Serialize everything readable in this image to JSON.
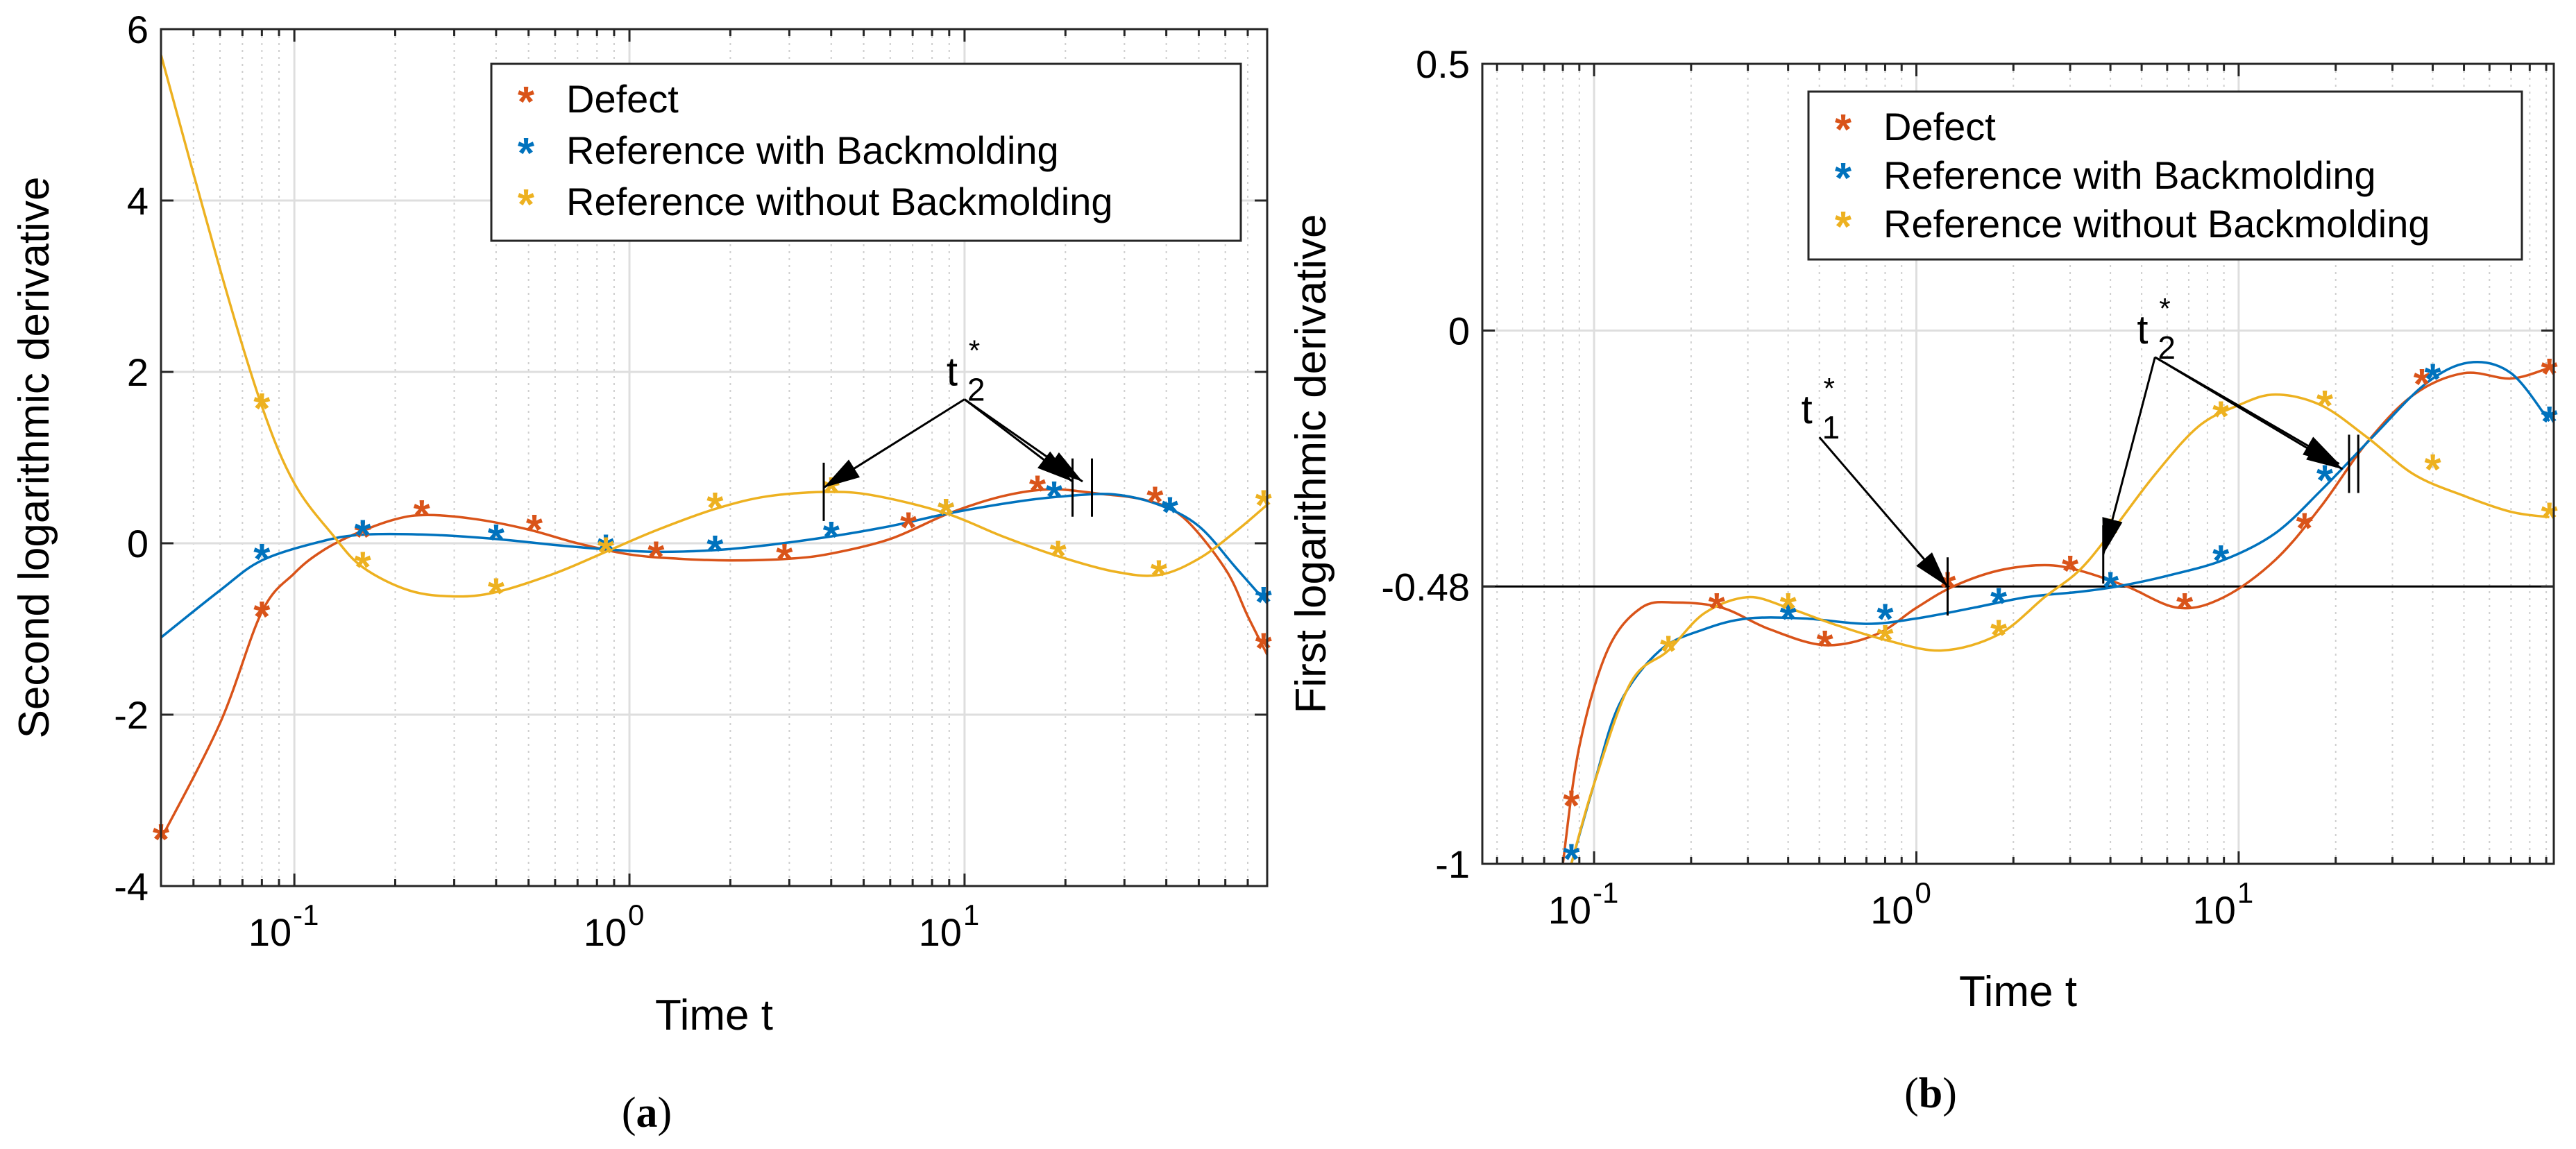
{
  "colors": {
    "defect": "#D95319",
    "with_backmolding": "#0072BD",
    "without_backmolding": "#EDB120",
    "grid": "#dedede",
    "axis": "#262626"
  },
  "chart_data": [
    {
      "id": "a",
      "type": "line",
      "caption": "(a)",
      "xscale": "log",
      "xlim": [
        0.04,
        80
      ],
      "ylim": [
        -4,
        6
      ],
      "xlabel": "Time t",
      "ylabel": "Second logarithmic derivative",
      "xticks": [
        0.1,
        1,
        10
      ],
      "xtick_bases": [
        "10",
        "10",
        "10"
      ],
      "xtick_exponents": [
        "-1",
        "0",
        "1"
      ],
      "yticks": [
        -4,
        -2,
        0,
        2,
        4,
        6
      ],
      "ytick_labels": [
        "-4",
        "-2",
        "0",
        "2",
        "4",
        "6"
      ],
      "grid": true,
      "legend_position": "top-right",
      "legend": [
        "Defect",
        "Reference with Backmolding",
        "Reference without Backmolding"
      ],
      "series": [
        {
          "name": "Defect",
          "color_key": "defect",
          "line": [
            [
              0.04,
              -3.45
            ],
            [
              0.06,
              -2.1
            ],
            [
              0.08,
              -0.8
            ],
            [
              0.1,
              -0.35
            ],
            [
              0.12,
              -0.1
            ],
            [
              0.15,
              0.1
            ],
            [
              0.2,
              0.28
            ],
            [
              0.25,
              0.33
            ],
            [
              0.35,
              0.28
            ],
            [
              0.5,
              0.16
            ],
            [
              0.7,
              0.0
            ],
            [
              1.0,
              -0.13
            ],
            [
              1.4,
              -0.18
            ],
            [
              2.0,
              -0.2
            ],
            [
              3.0,
              -0.18
            ],
            [
              4.0,
              -0.12
            ],
            [
              6.0,
              0.05
            ],
            [
              9.0,
              0.35
            ],
            [
              13.0,
              0.55
            ],
            [
              18.0,
              0.63
            ],
            [
              25.0,
              0.58
            ],
            [
              35.0,
              0.5
            ],
            [
              45.0,
              0.3
            ],
            [
              60.0,
              -0.3
            ],
            [
              70.0,
              -0.85
            ],
            [
              80.0,
              -1.3
            ]
          ],
          "markers": [
            [
              0.04,
              -3.45
            ],
            [
              0.08,
              -0.85
            ],
            [
              0.16,
              0.08
            ],
            [
              0.24,
              0.33
            ],
            [
              0.52,
              0.16
            ],
            [
              1.2,
              -0.15
            ],
            [
              2.9,
              -0.18
            ],
            [
              6.8,
              0.19
            ],
            [
              16.5,
              0.62
            ],
            [
              37.0,
              0.49
            ],
            [
              78.0,
              -1.22
            ]
          ]
        },
        {
          "name": "Reference with Backmolding",
          "color_key": "with_backmolding",
          "line": [
            [
              0.04,
              -1.1
            ],
            [
              0.06,
              -0.55
            ],
            [
              0.08,
              -0.2
            ],
            [
              0.12,
              0.02
            ],
            [
              0.16,
              0.1
            ],
            [
              0.25,
              0.1
            ],
            [
              0.4,
              0.05
            ],
            [
              0.6,
              -0.02
            ],
            [
              0.85,
              -0.07
            ],
            [
              1.2,
              -0.1
            ],
            [
              1.8,
              -0.08
            ],
            [
              2.6,
              -0.02
            ],
            [
              4.0,
              0.08
            ],
            [
              6.0,
              0.2
            ],
            [
              9.0,
              0.35
            ],
            [
              14.0,
              0.48
            ],
            [
              20.0,
              0.55
            ],
            [
              28.0,
              0.57
            ],
            [
              38.0,
              0.45
            ],
            [
              50.0,
              0.2
            ],
            [
              65.0,
              -0.3
            ],
            [
              80.0,
              -0.7
            ]
          ],
          "markers": [
            [
              0.08,
              -0.18
            ],
            [
              0.16,
              0.1
            ],
            [
              0.4,
              0.05
            ],
            [
              0.85,
              -0.07
            ],
            [
              1.8,
              -0.08
            ],
            [
              4.0,
              0.08
            ],
            [
              8.8,
              0.35
            ],
            [
              18.5,
              0.55
            ],
            [
              41.0,
              0.37
            ],
            [
              78.0,
              -0.68
            ]
          ]
        },
        {
          "name": "Reference without Backmolding",
          "color_key": "without_backmolding",
          "line": [
            [
              0.04,
              5.7
            ],
            [
              0.06,
              3.2
            ],
            [
              0.08,
              1.6
            ],
            [
              0.1,
              0.7
            ],
            [
              0.13,
              0.1
            ],
            [
              0.16,
              -0.28
            ],
            [
              0.22,
              -0.55
            ],
            [
              0.3,
              -0.62
            ],
            [
              0.4,
              -0.57
            ],
            [
              0.6,
              -0.35
            ],
            [
              0.85,
              -0.1
            ],
            [
              1.2,
              0.15
            ],
            [
              1.8,
              0.4
            ],
            [
              2.6,
              0.55
            ],
            [
              4.0,
              0.6
            ],
            [
              5.5,
              0.55
            ],
            [
              8.8,
              0.35
            ],
            [
              13.0,
              0.08
            ],
            [
              19.0,
              -0.15
            ],
            [
              28.0,
              -0.33
            ],
            [
              38.0,
              -0.37
            ],
            [
              50.0,
              -0.18
            ],
            [
              65.0,
              0.15
            ],
            [
              80.0,
              0.45
            ]
          ],
          "markers": [
            [
              0.08,
              1.58
            ],
            [
              0.16,
              -0.27
            ],
            [
              0.4,
              -0.58
            ],
            [
              0.85,
              -0.1
            ],
            [
              1.8,
              0.42
            ],
            [
              4.0,
              0.6
            ],
            [
              8.8,
              0.35
            ],
            [
              19.0,
              -0.14
            ],
            [
              38.0,
              -0.37
            ],
            [
              78.0,
              0.45
            ]
          ]
        }
      ],
      "annotations": [
        {
          "label_base": "t",
          "label_sub": "2",
          "label_sup": "*",
          "anchor": [
            10,
            1.68
          ],
          "targets": [
            [
              3.8,
              0.65
            ],
            [
              21.0,
              0.72
            ],
            [
              22.5,
              0.72
            ]
          ],
          "markers": [
            [
              3.8,
              0.6
            ],
            [
              21.0,
              0.65
            ],
            [
              24.0,
              0.65
            ]
          ]
        }
      ]
    },
    {
      "id": "b",
      "type": "line",
      "caption": "(b)",
      "xscale": "log",
      "xlim": [
        0.045,
        95
      ],
      "ylim": [
        -1,
        0.5
      ],
      "xlabel": "Time t",
      "ylabel": "First logarithmic derivative",
      "xticks": [
        0.1,
        1,
        10
      ],
      "xtick_bases": [
        "10",
        "10",
        "10"
      ],
      "xtick_exponents": [
        "-1",
        "0",
        "1"
      ],
      "yticks": [
        -1,
        -0.48,
        0,
        0.5
      ],
      "ytick_labels": [
        "-1",
        "-0.48",
        "0",
        "0.5"
      ],
      "grid": true,
      "reference_line": -0.48,
      "legend_position": "top-right",
      "legend": [
        "Defect",
        "Reference with Backmolding",
        "Reference without Backmolding"
      ],
      "series": [
        {
          "name": "Defect",
          "color_key": "defect",
          "line": [
            [
              0.08,
              -1.0
            ],
            [
              0.09,
              -0.78
            ],
            [
              0.11,
              -0.6
            ],
            [
              0.14,
              -0.52
            ],
            [
              0.18,
              -0.51
            ],
            [
              0.25,
              -0.52
            ],
            [
              0.35,
              -0.56
            ],
            [
              0.52,
              -0.59
            ],
            [
              0.75,
              -0.57
            ],
            [
              1.0,
              -0.52
            ],
            [
              1.3,
              -0.48
            ],
            [
              1.8,
              -0.45
            ],
            [
              2.5,
              -0.44
            ],
            [
              3.2,
              -0.45
            ],
            [
              4.5,
              -0.48
            ],
            [
              6.5,
              -0.52
            ],
            [
              9.0,
              -0.5
            ],
            [
              13.0,
              -0.43
            ],
            [
              18.0,
              -0.33
            ],
            [
              25.0,
              -0.21
            ],
            [
              35.0,
              -0.12
            ],
            [
              50.0,
              -0.08
            ],
            [
              70.0,
              -0.09
            ],
            [
              92.0,
              -0.07
            ]
          ],
          "markers": [
            [
              0.085,
              -0.89
            ],
            [
              0.24,
              -0.52
            ],
            [
              0.52,
              -0.59
            ],
            [
              1.25,
              -0.48
            ],
            [
              3.0,
              -0.45
            ],
            [
              6.8,
              -0.52
            ],
            [
              16.0,
              -0.37
            ],
            [
              37.0,
              -0.1
            ],
            [
              92.0,
              -0.08
            ]
          ]
        },
        {
          "name": "Reference with Backmolding",
          "color_key": "with_backmolding",
          "line": [
            [
              0.085,
              -1.0
            ],
            [
              0.1,
              -0.85
            ],
            [
              0.12,
              -0.7
            ],
            [
              0.16,
              -0.6
            ],
            [
              0.22,
              -0.56
            ],
            [
              0.3,
              -0.54
            ],
            [
              0.45,
              -0.54
            ],
            [
              0.7,
              -0.55
            ],
            [
              1.0,
              -0.54
            ],
            [
              1.5,
              -0.52
            ],
            [
              2.2,
              -0.5
            ],
            [
              3.2,
              -0.49
            ],
            [
              4.2,
              -0.48
            ],
            [
              6.0,
              -0.46
            ],
            [
              9.0,
              -0.43
            ],
            [
              13.0,
              -0.38
            ],
            [
              18.0,
              -0.3
            ],
            [
              26.0,
              -0.2
            ],
            [
              38.0,
              -0.1
            ],
            [
              52.0,
              -0.06
            ],
            [
              70.0,
              -0.08
            ],
            [
              92.0,
              -0.17
            ]
          ],
          "markers": [
            [
              0.085,
              -0.99
            ],
            [
              0.4,
              -0.54
            ],
            [
              0.8,
              -0.54
            ],
            [
              1.8,
              -0.51
            ],
            [
              4.0,
              -0.48
            ],
            [
              8.8,
              -0.43
            ],
            [
              18.5,
              -0.28
            ],
            [
              40.0,
              -0.09
            ],
            [
              92.0,
              -0.17
            ]
          ]
        },
        {
          "name": "Reference without Backmolding",
          "color_key": "without_backmolding",
          "line": [
            [
              0.085,
              -1.0
            ],
            [
              0.1,
              -0.85
            ],
            [
              0.13,
              -0.66
            ],
            [
              0.17,
              -0.6
            ],
            [
              0.22,
              -0.53
            ],
            [
              0.3,
              -0.5
            ],
            [
              0.4,
              -0.52
            ],
            [
              0.55,
              -0.55
            ],
            [
              0.8,
              -0.58
            ],
            [
              1.2,
              -0.6
            ],
            [
              1.8,
              -0.57
            ],
            [
              2.5,
              -0.5
            ],
            [
              3.2,
              -0.45
            ],
            [
              4.0,
              -0.38
            ],
            [
              5.5,
              -0.27
            ],
            [
              7.5,
              -0.18
            ],
            [
              10.0,
              -0.14
            ],
            [
              13.0,
              -0.12
            ],
            [
              18.0,
              -0.14
            ],
            [
              25.0,
              -0.2
            ],
            [
              35.0,
              -0.27
            ],
            [
              50.0,
              -0.31
            ],
            [
              70.0,
              -0.34
            ],
            [
              92.0,
              -0.35
            ]
          ],
          "markers": [
            [
              0.17,
              -0.6
            ],
            [
              0.4,
              -0.52
            ],
            [
              0.8,
              -0.58
            ],
            [
              1.8,
              -0.57
            ],
            [
              4.0,
              -0.38
            ],
            [
              8.8,
              -0.16
            ],
            [
              18.5,
              -0.14
            ],
            [
              40.0,
              -0.26
            ],
            [
              92.0,
              -0.35
            ]
          ]
        }
      ],
      "annotations": [
        {
          "label_base": "t",
          "label_sub": "1",
          "label_sup": "*",
          "anchor": [
            0.5,
            -0.2
          ],
          "targets": [
            [
              1.25,
              -0.48
            ]
          ],
          "markers": [
            [
              1.25,
              -0.48
            ]
          ]
        },
        {
          "label_base": "t",
          "label_sub": "2",
          "label_sup": "*",
          "anchor": [
            5.5,
            -0.05
          ],
          "targets": [
            [
              3.8,
              -0.42
            ],
            [
              20.5,
              -0.25
            ],
            [
              21.0,
              -0.26
            ]
          ],
          "markers": [
            [
              3.8,
              -0.42
            ],
            [
              22.0,
              -0.25
            ],
            [
              23.5,
              -0.25
            ]
          ]
        }
      ]
    }
  ]
}
